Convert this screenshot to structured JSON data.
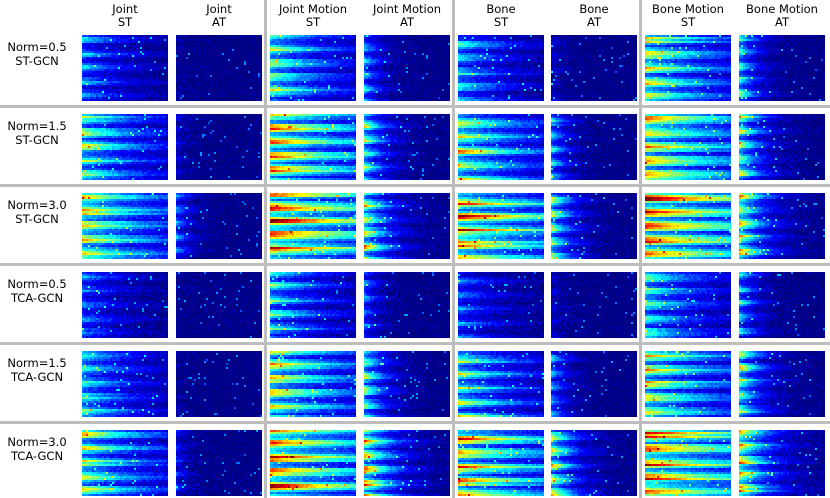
{
  "columns": [
    {
      "title": "Joint\nST"
    },
    {
      "title": "Joint\nAT"
    },
    {
      "title": "Joint Motion\nST"
    },
    {
      "title": "Joint Motion\nAT"
    },
    {
      "title": "Bone\nST"
    },
    {
      "title": "Bone\nAT"
    },
    {
      "title": "Bone Motion\nST"
    },
    {
      "title": "Bone Motion\nAT"
    }
  ],
  "rows": [
    {
      "label": "Norm=0.5\nST-GCN",
      "intensities": [
        0.35,
        0.05,
        0.6,
        0.4,
        0.45,
        0.12,
        0.7,
        0.5
      ]
    },
    {
      "label": "Norm=1.5\nST-GCN",
      "intensities": [
        0.6,
        0.12,
        0.85,
        0.6,
        0.7,
        0.4,
        0.85,
        0.65
      ]
    },
    {
      "label": "Norm=3.0\nST-GCN",
      "intensities": [
        0.75,
        0.3,
        0.95,
        0.75,
        0.9,
        0.6,
        0.95,
        0.75
      ]
    },
    {
      "label": "Norm=0.5\nTCA-GCN",
      "intensities": [
        0.3,
        0.03,
        0.5,
        0.3,
        0.3,
        0.12,
        0.55,
        0.45
      ]
    },
    {
      "label": "Norm=1.5\nTCA-GCN",
      "intensities": [
        0.5,
        0.05,
        0.75,
        0.6,
        0.6,
        0.35,
        0.75,
        0.65
      ]
    },
    {
      "label": "Norm=3.0\nTCA-GCN",
      "intensities": [
        0.65,
        0.18,
        0.9,
        0.85,
        0.85,
        0.7,
        0.95,
        0.85
      ]
    }
  ],
  "colormap": "jet",
  "colors": {
    "separator": "#bdbdbd",
    "background": "#ffffff",
    "low": "#00008f",
    "high": "#800000"
  }
}
